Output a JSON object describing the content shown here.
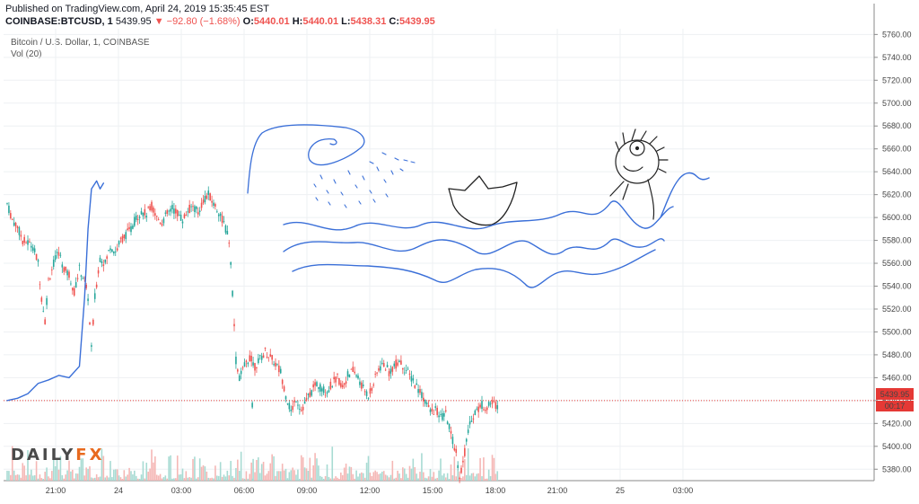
{
  "header": {
    "published": "Published on TradingView.com, April 24, 2019 15:35:45 EST",
    "symbol": "COINBASE:BTCUSD, 1",
    "last": "5439.95",
    "change": "−92.80 (−1.68%)",
    "open_label": "O:",
    "open": "5440.01",
    "high_label": "H:",
    "high": "5440.01",
    "low_label": "L:",
    "low": "5438.31",
    "close_label": "C:",
    "close": "5439.95",
    "down_arrow": "▼"
  },
  "legend": {
    "series": "Bitcoin / U.S. Dollar, 1, COINBASE",
    "volume": "Vol (20)"
  },
  "logo": {
    "part1": "DAILY",
    "part2": "FX"
  },
  "badges": {
    "price": "5439.95",
    "countdown": "00:17"
  },
  "colors": {
    "up": "#26a69a",
    "down": "#ef5350",
    "drawing": "#3a6fd8",
    "price_line": "#e53935",
    "volume_up": "#a8dbd3",
    "volume_down": "#f5b7b5",
    "logo_accent": "#e86a1f"
  },
  "chart_data": {
    "type": "candlestick",
    "title": "Bitcoin / U.S. Dollar, 1, COINBASE",
    "ylim": [
      5370,
      5765
    ],
    "y_ticks": [
      "5380.00",
      "5400.00",
      "5420.00",
      "5440.00",
      "5460.00",
      "5480.00",
      "5500.00",
      "5520.00",
      "5540.00",
      "5560.00",
      "5580.00",
      "5600.00",
      "5620.00",
      "5640.00",
      "5660.00",
      "5680.00",
      "5700.00",
      "5720.00",
      "5740.00",
      "5760.00"
    ],
    "x_ticks": [
      "21:00",
      "24",
      "03:00",
      "06:00",
      "09:00",
      "12:00",
      "15:00",
      "18:00",
      "21:00",
      "25",
      "03:00"
    ],
    "last_price": 5439.95,
    "price_path": [
      [
        "20:30",
        5612
      ],
      [
        "20:45",
        5598
      ],
      [
        "21:00",
        5592
      ],
      [
        "21:15",
        5580
      ],
      [
        "21:30",
        5578
      ],
      [
        "21:45",
        5575
      ],
      [
        "22:00",
        5560
      ],
      [
        "22:10",
        5530
      ],
      [
        "22:20",
        5510
      ],
      [
        "22:30",
        5545
      ],
      [
        "22:45",
        5560
      ],
      [
        "23:00",
        5570
      ],
      [
        "23:15",
        5555
      ],
      [
        "23:30",
        5550
      ],
      [
        "23:45",
        5535
      ],
      [
        "00:00",
        5555
      ],
      [
        "00:15",
        5545
      ],
      [
        "00:25",
        5530
      ],
      [
        "00:35",
        5485
      ],
      [
        "00:45",
        5530
      ],
      [
        "01:00",
        5565
      ],
      [
        "01:15",
        5560
      ],
      [
        "01:30",
        5575
      ],
      [
        "01:45",
        5570
      ],
      [
        "02:00",
        5580
      ],
      [
        "02:15",
        5585
      ],
      [
        "02:30",
        5590
      ],
      [
        "02:45",
        5600
      ],
      [
        "03:00",
        5605
      ],
      [
        "03:15",
        5603
      ],
      [
        "03:30",
        5610
      ],
      [
        "03:45",
        5600
      ],
      [
        "04:00",
        5596
      ],
      [
        "04:15",
        5603
      ],
      [
        "04:30",
        5608
      ],
      [
        "04:45",
        5604
      ],
      [
        "05:00",
        5598
      ],
      [
        "05:15",
        5606
      ],
      [
        "05:30",
        5610
      ],
      [
        "05:45",
        5604
      ],
      [
        "06:00",
        5615
      ],
      [
        "06:15",
        5620
      ],
      [
        "06:30",
        5612
      ],
      [
        "06:45",
        5605
      ],
      [
        "07:00",
        5595
      ],
      [
        "07:15",
        5580
      ],
      [
        "07:25",
        5535
      ],
      [
        "07:35",
        5475
      ],
      [
        "07:45",
        5460
      ],
      [
        "08:00",
        5470
      ],
      [
        "08:15",
        5478
      ],
      [
        "08:30",
        5470
      ],
      [
        "08:45",
        5476
      ],
      [
        "09:00",
        5483
      ],
      [
        "09:15",
        5478
      ],
      [
        "09:30",
        5472
      ],
      [
        "09:45",
        5465
      ],
      [
        "10:00",
        5445
      ],
      [
        "10:15",
        5430
      ],
      [
        "10:30",
        5442
      ],
      [
        "10:45",
        5432
      ],
      [
        "11:00",
        5440
      ],
      [
        "11:15",
        5448
      ],
      [
        "11:30",
        5455
      ],
      [
        "11:45",
        5450
      ],
      [
        "12:00",
        5448
      ],
      [
        "12:15",
        5455
      ],
      [
        "12:30",
        5460
      ],
      [
        "12:45",
        5452
      ],
      [
        "13:00",
        5462
      ],
      [
        "13:15",
        5466
      ],
      [
        "13:30",
        5460
      ],
      [
        "13:45",
        5450
      ],
      [
        "14:00",
        5445
      ],
      [
        "14:15",
        5455
      ],
      [
        "14:30",
        5468
      ],
      [
        "14:45",
        5472
      ],
      [
        "15:00",
        5465
      ],
      [
        "15:15",
        5470
      ],
      [
        "15:30",
        5475
      ],
      [
        "15:45",
        5468
      ],
      [
        "16:00",
        5462
      ],
      [
        "16:15",
        5455
      ],
      [
        "16:30",
        5448
      ],
      [
        "16:45",
        5440
      ],
      [
        "17:00",
        5430
      ],
      [
        "17:15",
        5432
      ],
      [
        "17:30",
        5425
      ],
      [
        "17:45",
        5428
      ],
      [
        "18:00",
        5410
      ],
      [
        "18:15",
        5395
      ],
      [
        "18:25",
        5375
      ],
      [
        "18:35",
        5385
      ],
      [
        "18:45",
        5405
      ],
      [
        "19:00",
        5425
      ],
      [
        "19:15",
        5432
      ],
      [
        "19:30",
        5436
      ],
      [
        "19:45",
        5434
      ],
      [
        "20:00",
        5438
      ],
      [
        "20:15",
        5436
      ],
      [
        "20:30",
        5440
      ]
    ],
    "volume_bars": 120
  },
  "drawing": {
    "description_free": true,
    "projected_path": [
      [
        "20:30",
        5440
      ],
      [
        "21:00",
        5442
      ],
      [
        "21:30",
        5446
      ],
      [
        "22:00",
        5455
      ],
      [
        "22:30",
        5458
      ],
      [
        "23:00",
        5462
      ],
      [
        "23:30",
        5460
      ],
      [
        "00:00",
        5470
      ],
      [
        "00:15",
        5530
      ],
      [
        "00:25",
        5590
      ],
      [
        "00:35",
        5625
      ],
      [
        "00:50",
        5632
      ],
      [
        "01:00",
        5625
      ],
      [
        "01:10",
        5630
      ]
    ]
  }
}
